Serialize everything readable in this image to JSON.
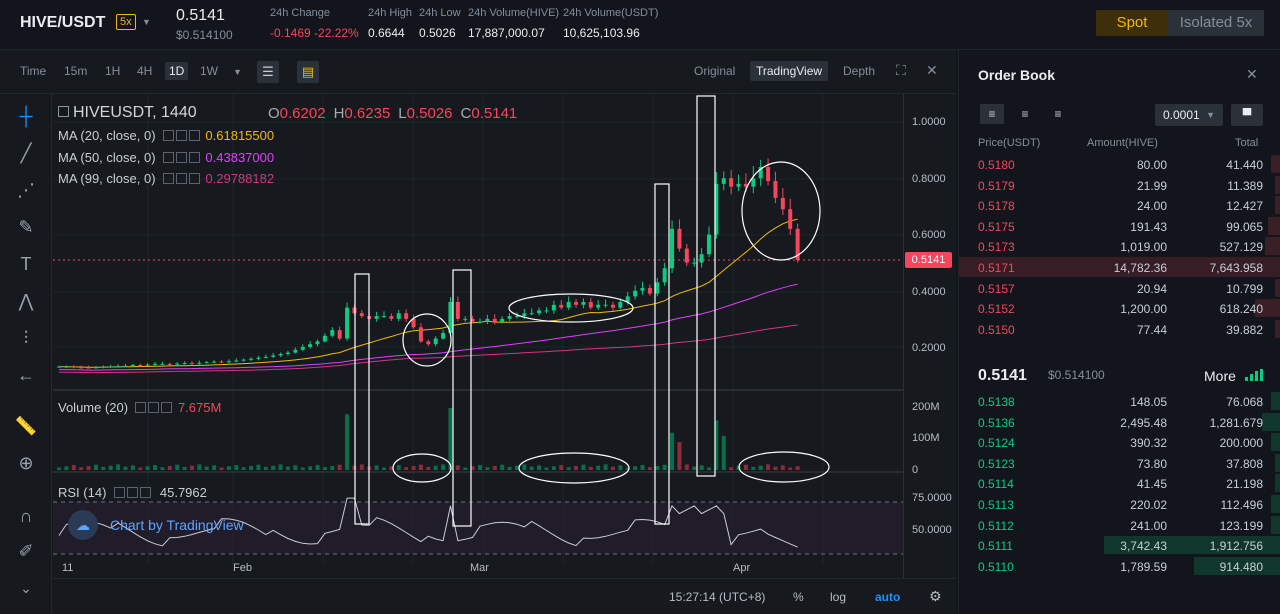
{
  "header": {
    "pair": "HIVE/USDT",
    "leverage": "5x",
    "price": "0.5141",
    "price_usd": "$0.514100",
    "stats": [
      {
        "label": "24h Change",
        "value": "-0.1469 -22.22%",
        "tone": "red"
      },
      {
        "label": "24h High",
        "value": "0.6644",
        "tone": "plain"
      },
      {
        "label": "24h Low",
        "value": "0.5026",
        "tone": "plain"
      },
      {
        "label": "24h Volume(HIVE)",
        "value": "17,887,000.07",
        "tone": "plain"
      },
      {
        "label": "24h Volume(USDT)",
        "value": "10,625,103.96",
        "tone": "plain"
      }
    ],
    "mode_spot": "Spot",
    "mode_isolated": "Isolated",
    "mode_isolated_lev": "5x"
  },
  "toolbar": {
    "timeframes": [
      "Time",
      "15m",
      "1H",
      "4H",
      "1D",
      "1W"
    ],
    "active_timeframe": "1D",
    "views": [
      "Original",
      "TradingView",
      "Depth"
    ],
    "active_view": "TradingView"
  },
  "chart": {
    "symbol": "HIVEUSDT, 1440",
    "ohlc": {
      "O": "0.6202",
      "H": "0.6235",
      "L": "0.5026",
      "C": "0.5141"
    },
    "ma": [
      {
        "label": "MA (20, close, 0)",
        "value": "0.61815500",
        "color": "#f0b90b"
      },
      {
        "label": "MA (50, close, 0)",
        "value": "0.43837000",
        "color": "#e040fb"
      },
      {
        "label": "MA (99, close, 0)",
        "value": "0.29788182",
        "color": "#d63384"
      }
    ],
    "volume_label": "Volume (20)",
    "volume_value": "7.675M",
    "rsi_label": "RSI (14)",
    "rsi_value": "45.7962",
    "price_axis": [
      "1.0000",
      "0.8000",
      "0.6000",
      "0.4000",
      "0.2000"
    ],
    "last_price_tag": "0.5141",
    "volume_axis": [
      "200M",
      "100M",
      "0"
    ],
    "rsi_axis": [
      "75.0000",
      "50.0000"
    ],
    "x_labels": [
      "11",
      "Feb",
      "Mar",
      "Apr"
    ],
    "watermark": "Chart by TradingView",
    "time": "15:27:14 (UTC+8)",
    "pct": "%",
    "log": "log",
    "auto": "auto"
  },
  "chart_data": {
    "type": "candlestick",
    "title": "HIVEUSDT, 1440",
    "y_range": [
      0.1,
      1.05
    ],
    "closes": [
      0.13,
      0.13,
      0.128,
      0.127,
      0.126,
      0.128,
      0.13,
      0.131,
      0.132,
      0.133,
      0.136,
      0.135,
      0.137,
      0.14,
      0.14,
      0.139,
      0.141,
      0.143,
      0.142,
      0.144,
      0.146,
      0.148,
      0.147,
      0.149,
      0.152,
      0.155,
      0.158,
      0.162,
      0.165,
      0.17,
      0.175,
      0.18,
      0.19,
      0.2,
      0.21,
      0.22,
      0.24,
      0.26,
      0.23,
      0.34,
      0.32,
      0.31,
      0.3,
      0.31,
      0.31,
      0.3,
      0.32,
      0.3,
      0.27,
      0.22,
      0.21,
      0.23,
      0.25,
      0.36,
      0.3,
      0.3,
      0.29,
      0.29,
      0.3,
      0.29,
      0.3,
      0.31,
      0.31,
      0.32,
      0.32,
      0.33,
      0.33,
      0.35,
      0.34,
      0.36,
      0.35,
      0.36,
      0.34,
      0.35,
      0.35,
      0.34,
      0.36,
      0.38,
      0.4,
      0.41,
      0.39,
      0.43,
      0.48,
      0.62,
      0.55,
      0.5,
      0.5,
      0.53,
      0.6,
      0.78,
      0.8,
      0.77,
      0.78,
      0.77,
      0.8,
      0.84,
      0.79,
      0.73,
      0.69,
      0.62,
      0.51
    ],
    "volume_peaks": {
      "late_jan": 180,
      "late_feb": 200,
      "late_mar": 160
    },
    "ma": [
      "MA 20",
      "MA 50",
      "MA 99"
    ]
  },
  "orderbook": {
    "title": "Order Book",
    "precision": "0.0001",
    "headers": {
      "price": "Price(USDT)",
      "amount": "Amount(HIVE)",
      "total": "Total"
    },
    "asks": [
      {
        "price": "0.5180",
        "amount": "80.00",
        "total": "41.440",
        "depth": 0.03
      },
      {
        "price": "0.5179",
        "amount": "21.99",
        "total": "11.389",
        "depth": 0.02
      },
      {
        "price": "0.5178",
        "amount": "24.00",
        "total": "12.427",
        "depth": 0.02
      },
      {
        "price": "0.5175",
        "amount": "191.43",
        "total": "99.065",
        "depth": 0.04
      },
      {
        "price": "0.5173",
        "amount": "1,019.00",
        "total": "527.129",
        "depth": 0.05
      },
      {
        "price": "0.5171",
        "amount": "14,782.36",
        "total": "7,643.958",
        "depth": 1.0
      },
      {
        "price": "0.5157",
        "amount": "20.94",
        "total": "10.799",
        "depth": 0.02
      },
      {
        "price": "0.5152",
        "amount": "1,200.00",
        "total": "618.240",
        "depth": 0.08
      },
      {
        "price": "0.5150",
        "amount": "77.44",
        "total": "39.882",
        "depth": 0.02
      }
    ],
    "mid_price": "0.5141",
    "mid_usd": "$0.514100",
    "more": "More",
    "bids": [
      {
        "price": "0.5138",
        "amount": "148.05",
        "total": "76.068",
        "depth": 0.03
      },
      {
        "price": "0.5136",
        "amount": "2,495.48",
        "total": "1,281.679",
        "depth": 0.06
      },
      {
        "price": "0.5124",
        "amount": "390.32",
        "total": "200.000",
        "depth": 0.03
      },
      {
        "price": "0.5123",
        "amount": "73.80",
        "total": "37.808",
        "depth": 0.02
      },
      {
        "price": "0.5114",
        "amount": "41.45",
        "total": "21.198",
        "depth": 0.02
      },
      {
        "price": "0.5113",
        "amount": "220.02",
        "total": "112.496",
        "depth": 0.03
      },
      {
        "price": "0.5112",
        "amount": "241.00",
        "total": "123.199",
        "depth": 0.03
      },
      {
        "price": "0.5111",
        "amount": "3,742.43",
        "total": "1,912.756",
        "depth": 0.55
      },
      {
        "price": "0.5110",
        "amount": "1,789.59",
        "total": "914.480",
        "depth": 0.27
      }
    ]
  }
}
